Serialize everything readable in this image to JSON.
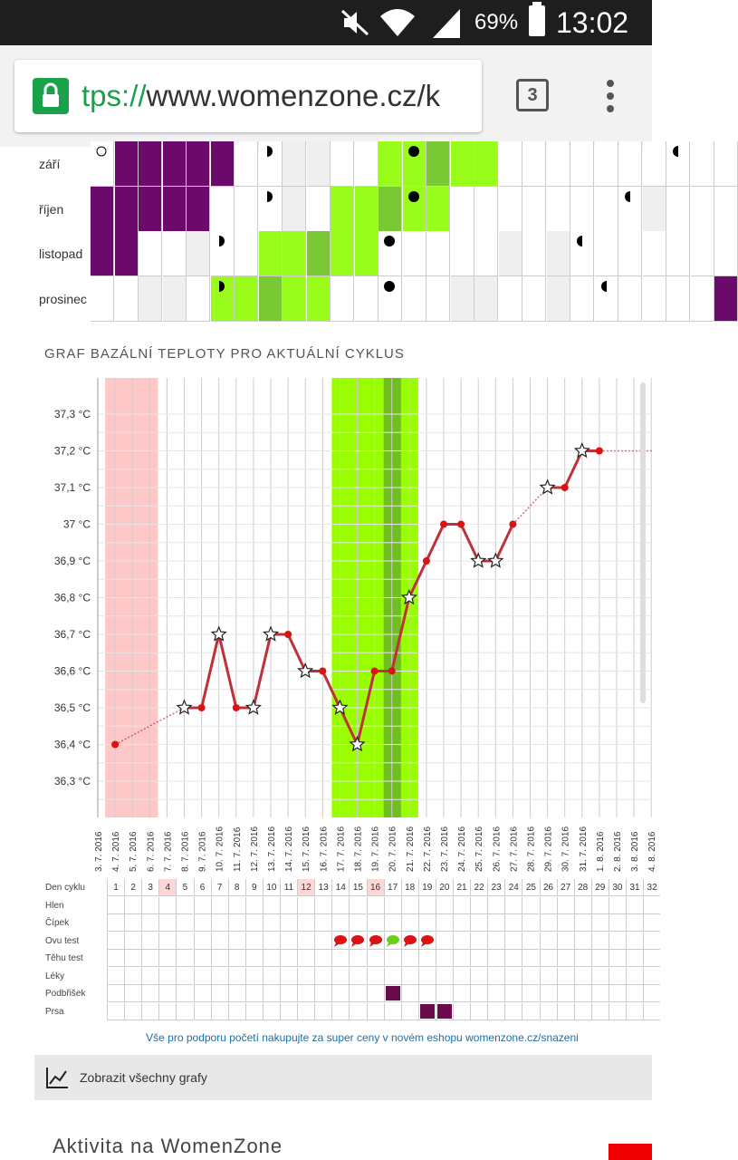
{
  "status_bar": {
    "battery": "69%",
    "time": "13:02"
  },
  "browser": {
    "url_scheme": "tps://",
    "url_host": "www.womenzone.cz/k",
    "tab_count": "3"
  },
  "calendar": {
    "colors": {
      "purple": "#6b0a6b",
      "fertile": "#9afc1b",
      "ovulation": "#7ac934",
      "grey": "#efefef"
    },
    "months": [
      {
        "label": "září",
        "cells": [
          "o",
          "P",
          "P",
          "P",
          "P",
          "P",
          "",
          "fq",
          "g",
          "g",
          "",
          "",
          "F",
          "Ff",
          "O",
          "F",
          "F",
          "",
          "",
          "",
          "",
          "",
          "",
          "",
          "lq",
          "",
          ""
        ]
      },
      {
        "label": "říjen",
        "cells": [
          "P",
          "P",
          "P",
          "P",
          "P",
          "",
          "",
          "fq",
          "g",
          "",
          "F",
          "F",
          "O",
          "Ff",
          "F",
          "",
          "",
          "",
          "",
          "",
          "",
          "",
          "lq",
          "g",
          "",
          "",
          ""
        ]
      },
      {
        "label": "listopad",
        "cells": [
          "P",
          "P",
          "",
          "",
          "g",
          "fq",
          "",
          "F",
          "F",
          "O",
          "F",
          "F",
          "f",
          "",
          "",
          "",
          "",
          "g",
          "",
          "g",
          "lq",
          "",
          "",
          "",
          "",
          "",
          ""
        ]
      },
      {
        "label": "prosinec",
        "cells": [
          "",
          "",
          "g",
          "g",
          "",
          "Ffq",
          "F",
          "O",
          "F",
          "F",
          "",
          "",
          "f",
          "",
          "",
          "g",
          "g",
          "",
          "",
          "g",
          "",
          "lq",
          "",
          "",
          "",
          "",
          "P"
        ]
      }
    ]
  },
  "graph": {
    "title": "GRAF BAZÁLNÍ TEPLOTY PRO AKTUÁLNÍ CYKLUS",
    "colors": {
      "period": "#ffc8c8",
      "fertile": "#99ff00",
      "ovulation": "#6fbf20",
      "line": "#c0303a",
      "point": "#dd1111"
    }
  },
  "chart_data": {
    "type": "line",
    "ylabel": "",
    "ylim": [
      36.2,
      37.4
    ],
    "y_ticks": [
      "36,3 °C",
      "36,4 °C",
      "36,5 °C",
      "36,6 °C",
      "36,7 °C",
      "36,8 °C",
      "36,9 °C",
      "37 °C",
      "37,1 °C",
      "37,2 °C",
      "37,3 °C"
    ],
    "x": [
      "3. 7. 2016",
      "4. 7. 2016",
      "5. 7. 2016",
      "6. 7. 2016",
      "7. 7. 2016",
      "8. 7. 2016",
      "9. 7. 2016",
      "10. 7. 2016",
      "11. 7. 2016",
      "12. 7. 2016",
      "13. 7. 2016",
      "14. 7. 2016",
      "15. 7. 2016",
      "16. 7. 2016",
      "17. 7. 2016",
      "18. 7. 2016",
      "19. 7. 2016",
      "20. 7. 2016",
      "21. 7. 2016",
      "22. 7. 2016",
      "23. 7. 2016",
      "24. 7. 2016",
      "25. 7. 2016",
      "26. 7. 2016",
      "27. 7. 2016",
      "28. 7. 2016",
      "29. 7. 2016",
      "30. 7. 2016",
      "31. 7. 2016",
      "1. 8. 2016",
      "2. 8. 2016",
      "3. 8. 2016",
      "4. 8. 2016"
    ],
    "series": [
      {
        "values": [
          null,
          36.4,
          null,
          null,
          null,
          36.5,
          36.5,
          36.7,
          36.5,
          36.5,
          36.7,
          36.7,
          36.6,
          36.6,
          36.5,
          36.4,
          36.6,
          36.6,
          36.8,
          36.9,
          37.0,
          37.0,
          36.9,
          36.9,
          37.0,
          null,
          37.1,
          37.1,
          37.2,
          37.2,
          null,
          null,
          null
        ]
      }
    ],
    "star_points": [
      5,
      7,
      9,
      10,
      12,
      14,
      15,
      18,
      22,
      23,
      26,
      28
    ],
    "dotted_segments": [
      [
        1,
        5
      ],
      [
        24,
        26
      ]
    ],
    "dotted_tail_from": 29,
    "period_days": [
      1,
      2,
      3
    ],
    "fertile_days": [
      14,
      15,
      16,
      17,
      18
    ],
    "ovulation_day": 17
  },
  "symptoms": {
    "header_label": "Den cyklu",
    "days": [
      "1",
      "2",
      "3",
      "4",
      "5",
      "6",
      "7",
      "8",
      "9",
      "10",
      "11",
      "12",
      "13",
      "14",
      "15",
      "16",
      "17",
      "18",
      "19",
      "20",
      "21",
      "22",
      "23",
      "24",
      "25",
      "26",
      "27",
      "28",
      "29",
      "30",
      "31",
      "32"
    ],
    "highlight_days": [
      3,
      11,
      15
    ],
    "rows": [
      {
        "label": "Hlen",
        "marks": []
      },
      {
        "label": "Čípek",
        "marks": []
      },
      {
        "label": "Ovu test",
        "marks": [
          13,
          14,
          15,
          16,
          17,
          18
        ],
        "green": [
          16
        ]
      },
      {
        "label": "Těhu test",
        "marks": []
      },
      {
        "label": "Léky",
        "marks": []
      },
      {
        "label": "Podbřišek",
        "marks": [
          16
        ]
      },
      {
        "label": "Prsa",
        "marks": [
          18,
          19
        ]
      }
    ]
  },
  "promo_text": "Vše pro podporu početí nakupujte za super ceny v novém eshopu womenzone.cz/snazeni",
  "show_all_label": "Zobrazit všechny grafy",
  "activity_label": "Aktivita na WomenZone"
}
